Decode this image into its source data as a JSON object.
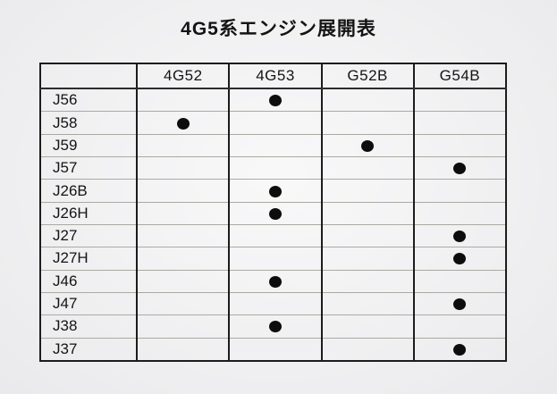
{
  "title": "4G5系エンジン展開表",
  "table": {
    "corner_label": "",
    "columns": [
      "4G52",
      "4G53",
      "G52B",
      "G54B"
    ],
    "mark_symbol": "dot",
    "rows": [
      {
        "model": "J56",
        "marks": [
          false,
          true,
          false,
          false
        ]
      },
      {
        "model": "J58",
        "marks": [
          true,
          false,
          false,
          false
        ]
      },
      {
        "model": "J59",
        "marks": [
          false,
          false,
          true,
          false
        ]
      },
      {
        "model": "J57",
        "marks": [
          false,
          false,
          false,
          true
        ]
      },
      {
        "model": "J26B",
        "marks": [
          false,
          true,
          false,
          false
        ]
      },
      {
        "model": "J26H",
        "marks": [
          false,
          true,
          false,
          false
        ]
      },
      {
        "model": "J27",
        "marks": [
          false,
          false,
          false,
          true
        ]
      },
      {
        "model": "J27H",
        "marks": [
          false,
          false,
          false,
          true
        ]
      },
      {
        "model": "J46",
        "marks": [
          false,
          true,
          false,
          false
        ]
      },
      {
        "model": "J47",
        "marks": [
          false,
          false,
          false,
          true
        ]
      },
      {
        "model": "J38",
        "marks": [
          false,
          true,
          false,
          false
        ]
      },
      {
        "model": "J37",
        "marks": [
          false,
          false,
          false,
          true
        ]
      }
    ],
    "colors": {
      "paper": "#f2f2f4",
      "line_strong": "#1c1c1c",
      "line_light": "#aaaaa3",
      "ink": "#141414",
      "dot": "#0d0d0d"
    }
  }
}
